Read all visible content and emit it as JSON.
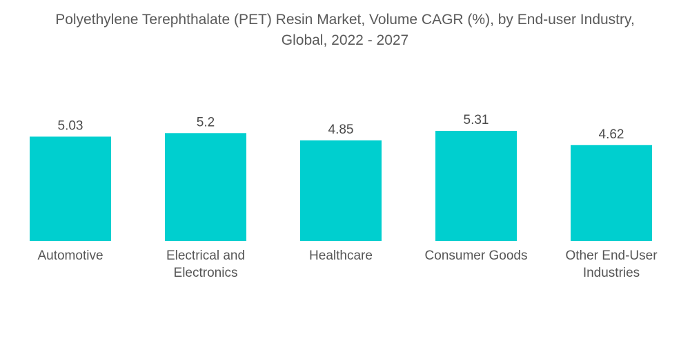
{
  "title": {
    "line1": "Polyethylene Terephthalate (PET) Resin Market, Volume CAGR (%), by End-user Industry,",
    "line2": "Global, 2022 - 2027"
  },
  "colors": {
    "bar": "#00CFCF"
  },
  "chart_data": {
    "type": "bar",
    "title": "Polyethylene Terephthalate (PET) Resin Market, Volume CAGR (%), by End-user Industry, Global, 2022 - 2027",
    "categories": [
      [
        "Automotive"
      ],
      [
        "Electrical and",
        "Electronics"
      ],
      [
        "Healthcare"
      ],
      [
        "Consumer Goods"
      ],
      [
        "Other End-User",
        "Industries"
      ]
    ],
    "values": [
      5.03,
      5.2,
      4.85,
      5.31,
      4.62
    ],
    "value_labels": [
      "5.03",
      "5.2",
      "4.85",
      "5.31",
      "4.62"
    ],
    "xlabel": "",
    "ylabel": "",
    "ylim": [
      0,
      5.31
    ],
    "grid": false,
    "legend": "none"
  }
}
